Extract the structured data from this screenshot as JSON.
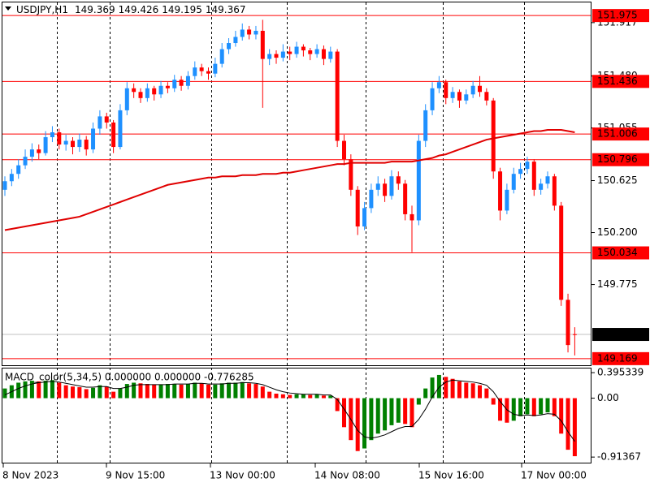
{
  "chart_data": {
    "type": "candlestick",
    "symbol": "USDJPY,H1",
    "ohlc": [
      [
        150.55,
        150.66,
        150.5,
        150.62
      ],
      [
        150.62,
        150.72,
        150.58,
        150.68
      ],
      [
        150.68,
        150.8,
        150.64,
        150.75
      ],
      [
        150.75,
        150.88,
        150.72,
        150.82
      ],
      [
        150.82,
        150.93,
        150.78,
        150.88
      ],
      [
        150.88,
        150.92,
        150.8,
        150.85
      ],
      [
        150.85,
        151.03,
        150.83,
        150.98
      ],
      [
        150.98,
        151.07,
        150.94,
        151.02
      ],
      [
        151.02,
        151.05,
        150.88,
        150.92
      ],
      [
        150.92,
        151.0,
        150.87,
        150.95
      ],
      [
        150.95,
        150.98,
        150.84,
        150.9
      ],
      [
        150.9,
        151.01,
        150.86,
        150.96
      ],
      [
        150.96,
        150.99,
        150.83,
        150.88
      ],
      [
        150.88,
        151.1,
        150.85,
        151.05
      ],
      [
        151.05,
        151.2,
        151.0,
        151.15
      ],
      [
        151.15,
        151.18,
        151.05,
        151.1
      ],
      [
        151.1,
        151.12,
        150.85,
        150.9
      ],
      [
        150.9,
        151.25,
        150.88,
        151.2
      ],
      [
        151.2,
        151.43,
        151.16,
        151.38
      ],
      [
        151.38,
        151.42,
        151.3,
        151.35
      ],
      [
        151.35,
        151.38,
        151.26,
        151.3
      ],
      [
        151.3,
        151.42,
        151.27,
        151.38
      ],
      [
        151.38,
        151.4,
        151.28,
        151.33
      ],
      [
        151.33,
        151.44,
        151.3,
        151.4
      ],
      [
        151.4,
        151.43,
        151.34,
        151.38
      ],
      [
        151.38,
        151.49,
        151.35,
        151.45
      ],
      [
        151.45,
        151.48,
        151.36,
        151.4
      ],
      [
        151.4,
        151.52,
        151.37,
        151.48
      ],
      [
        151.48,
        151.6,
        151.45,
        151.55
      ],
      [
        151.55,
        151.58,
        151.48,
        151.52
      ],
      [
        151.52,
        151.55,
        151.45,
        151.5
      ],
      [
        151.5,
        151.63,
        151.47,
        151.58
      ],
      [
        151.58,
        151.75,
        151.55,
        151.7
      ],
      [
        151.7,
        151.79,
        151.66,
        151.75
      ],
      [
        151.75,
        151.85,
        151.72,
        151.8
      ],
      [
        151.8,
        151.91,
        151.77,
        151.86
      ],
      [
        151.86,
        151.89,
        151.78,
        151.82
      ],
      [
        151.82,
        151.89,
        151.78,
        151.85
      ],
      [
        151.85,
        151.94,
        151.22,
        151.62
      ],
      [
        151.62,
        151.7,
        151.57,
        151.66
      ],
      [
        151.66,
        151.69,
        151.58,
        151.63
      ],
      [
        151.63,
        151.74,
        151.6,
        151.68
      ],
      [
        151.68,
        151.72,
        151.61,
        151.66
      ],
      [
        151.66,
        151.76,
        151.63,
        151.72
      ],
      [
        151.72,
        151.74,
        151.64,
        151.69
      ],
      [
        151.69,
        151.71,
        151.61,
        151.66
      ],
      [
        151.66,
        151.74,
        151.63,
        151.7
      ],
      [
        151.7,
        151.73,
        151.57,
        151.62
      ],
      [
        151.62,
        151.72,
        151.59,
        151.68
      ],
      [
        151.68,
        151.7,
        150.9,
        150.95
      ],
      [
        150.95,
        151.0,
        150.75,
        150.8
      ],
      [
        150.8,
        150.84,
        150.5,
        150.55
      ],
      [
        150.55,
        150.58,
        150.18,
        150.25
      ],
      [
        150.25,
        150.45,
        150.22,
        150.4
      ],
      [
        150.4,
        150.6,
        150.36,
        150.55
      ],
      [
        150.55,
        150.66,
        150.5,
        150.6
      ],
      [
        150.6,
        150.64,
        150.45,
        150.5
      ],
      [
        150.5,
        150.71,
        150.47,
        150.66
      ],
      [
        150.66,
        150.7,
        150.55,
        150.6
      ],
      [
        150.6,
        150.63,
        150.3,
        150.35
      ],
      [
        150.35,
        150.42,
        150.04,
        150.3
      ],
      [
        150.3,
        151.0,
        150.26,
        150.95
      ],
      [
        150.95,
        151.25,
        150.9,
        151.2
      ],
      [
        151.2,
        151.43,
        151.16,
        151.38
      ],
      [
        151.38,
        151.48,
        151.34,
        151.43
      ],
      [
        151.43,
        151.45,
        151.25,
        151.3
      ],
      [
        151.3,
        151.39,
        151.26,
        151.35
      ],
      [
        151.35,
        151.37,
        151.22,
        151.28
      ],
      [
        151.28,
        151.37,
        151.25,
        151.33
      ],
      [
        151.33,
        151.44,
        151.3,
        151.4
      ],
      [
        151.4,
        151.48,
        151.31,
        151.35
      ],
      [
        151.35,
        151.38,
        151.24,
        151.28
      ],
      [
        151.28,
        151.3,
        150.64,
        150.7
      ],
      [
        150.7,
        150.73,
        150.3,
        150.38
      ],
      [
        150.38,
        150.6,
        150.35,
        150.55
      ],
      [
        150.55,
        150.73,
        150.52,
        150.68
      ],
      [
        150.68,
        150.77,
        150.64,
        150.72
      ],
      [
        150.72,
        150.82,
        150.68,
        150.78
      ],
      [
        150.78,
        150.8,
        150.5,
        150.55
      ],
      [
        150.55,
        150.64,
        150.51,
        150.6
      ],
      [
        150.6,
        150.7,
        150.56,
        150.66
      ],
      [
        150.66,
        150.68,
        150.38,
        150.42
      ],
      [
        150.42,
        150.45,
        149.6,
        149.65
      ],
      [
        149.65,
        149.7,
        149.22,
        149.28
      ],
      [
        149.369,
        149.426,
        149.195,
        149.367
      ]
    ],
    "up_color": "#1e90ff",
    "down_color": "#ff0000",
    "ma": {
      "color": "#e00000",
      "values": [
        150.22,
        150.23,
        150.24,
        150.25,
        150.26,
        150.27,
        150.28,
        150.29,
        150.3,
        150.31,
        150.32,
        150.33,
        150.35,
        150.37,
        150.39,
        150.41,
        150.43,
        150.45,
        150.47,
        150.49,
        150.51,
        150.53,
        150.55,
        150.57,
        150.59,
        150.6,
        150.61,
        150.62,
        150.63,
        150.64,
        150.65,
        150.65,
        150.66,
        150.66,
        150.66,
        150.67,
        150.67,
        150.67,
        150.68,
        150.68,
        150.68,
        150.69,
        150.69,
        150.7,
        150.71,
        150.72,
        150.73,
        150.74,
        150.75,
        150.76,
        150.76,
        150.77,
        150.77,
        150.77,
        150.77,
        150.77,
        150.77,
        150.78,
        150.78,
        150.78,
        150.78,
        150.79,
        150.8,
        150.81,
        150.83,
        150.84,
        150.86,
        150.88,
        150.9,
        150.92,
        150.94,
        150.96,
        150.97,
        150.98,
        150.99,
        151.0,
        151.01,
        151.02,
        151.03,
        151.03,
        151.04,
        151.04,
        151.04,
        151.03,
        151.02
      ]
    },
    "levels": [
      151.975,
      151.436,
      151.006,
      150.796,
      150.034,
      149.169
    ],
    "level_color": "#ff0000",
    "bid": 149.367,
    "ylim": [
      149.115,
      152.082
    ],
    "yticks": [
      149.775,
      {
        "value": 150.2,
        "label": "150.200"
      },
      150.625,
      151.055,
      {
        "value": 151.48,
        "label": "151.480"
      },
      151.917
    ],
    "x_tick_labels": [
      "8 Nov 2023",
      "9 Nov 15:00",
      "13 Nov 00:00",
      "14 Nov 08:00",
      "15 Nov 16:00",
      "17 Nov 00:00"
    ],
    "macd": {
      "label": "MACD_color(5,34,5) 0.000000 0.000000 -0.776285",
      "histogram": [
        0.15,
        0.2,
        0.24,
        0.26,
        0.27,
        0.26,
        0.27,
        0.28,
        0.24,
        0.2,
        0.18,
        0.17,
        0.14,
        0.16,
        0.2,
        0.18,
        0.1,
        0.15,
        0.22,
        0.24,
        0.23,
        0.22,
        0.21,
        0.21,
        0.22,
        0.22,
        0.21,
        0.22,
        0.24,
        0.23,
        0.21,
        0.21,
        0.23,
        0.24,
        0.24,
        0.25,
        0.23,
        0.22,
        0.18,
        0.1,
        0.07,
        0.06,
        0.05,
        0.06,
        0.06,
        0.05,
        0.06,
        0.04,
        0.04,
        -0.2,
        -0.45,
        -0.65,
        -0.82,
        -0.78,
        -0.65,
        -0.55,
        -0.5,
        -0.42,
        -0.38,
        -0.4,
        -0.45,
        -0.1,
        0.15,
        0.32,
        0.36,
        0.33,
        0.3,
        0.26,
        0.24,
        0.23,
        0.2,
        0.15,
        -0.1,
        -0.35,
        -0.38,
        -0.35,
        -0.28,
        -0.25,
        -0.28,
        -0.25,
        -0.22,
        -0.28,
        -0.55,
        -0.8,
        -0.9
      ],
      "signal": [
        0.05,
        0.1,
        0.15,
        0.19,
        0.22,
        0.24,
        0.25,
        0.26,
        0.25,
        0.23,
        0.21,
        0.19,
        0.17,
        0.17,
        0.18,
        0.18,
        0.15,
        0.15,
        0.17,
        0.2,
        0.21,
        0.21,
        0.21,
        0.21,
        0.21,
        0.22,
        0.22,
        0.22,
        0.23,
        0.23,
        0.22,
        0.22,
        0.22,
        0.23,
        0.23,
        0.24,
        0.24,
        0.23,
        0.21,
        0.17,
        0.13,
        0.1,
        0.08,
        0.07,
        0.06,
        0.06,
        0.06,
        0.05,
        0.05,
        -0.02,
        -0.17,
        -0.33,
        -0.5,
        -0.6,
        -0.62,
        -0.6,
        -0.57,
        -0.52,
        -0.47,
        -0.44,
        -0.44,
        -0.33,
        -0.17,
        0.02,
        0.17,
        0.25,
        0.28,
        0.27,
        0.26,
        0.25,
        0.23,
        0.2,
        0.1,
        -0.05,
        -0.18,
        -0.25,
        -0.27,
        -0.26,
        -0.27,
        -0.26,
        -0.24,
        -0.25,
        -0.35,
        -0.52,
        -0.67
      ],
      "up_color": "#008000",
      "down_color": "#ff0000",
      "signal_color": "#000000",
      "ylim": [
        -1.0,
        0.46
      ],
      "yticks": [
        0.395339,
        {
          "value": 0,
          "label": "0.00"
        },
        -0.91367
      ]
    }
  }
}
